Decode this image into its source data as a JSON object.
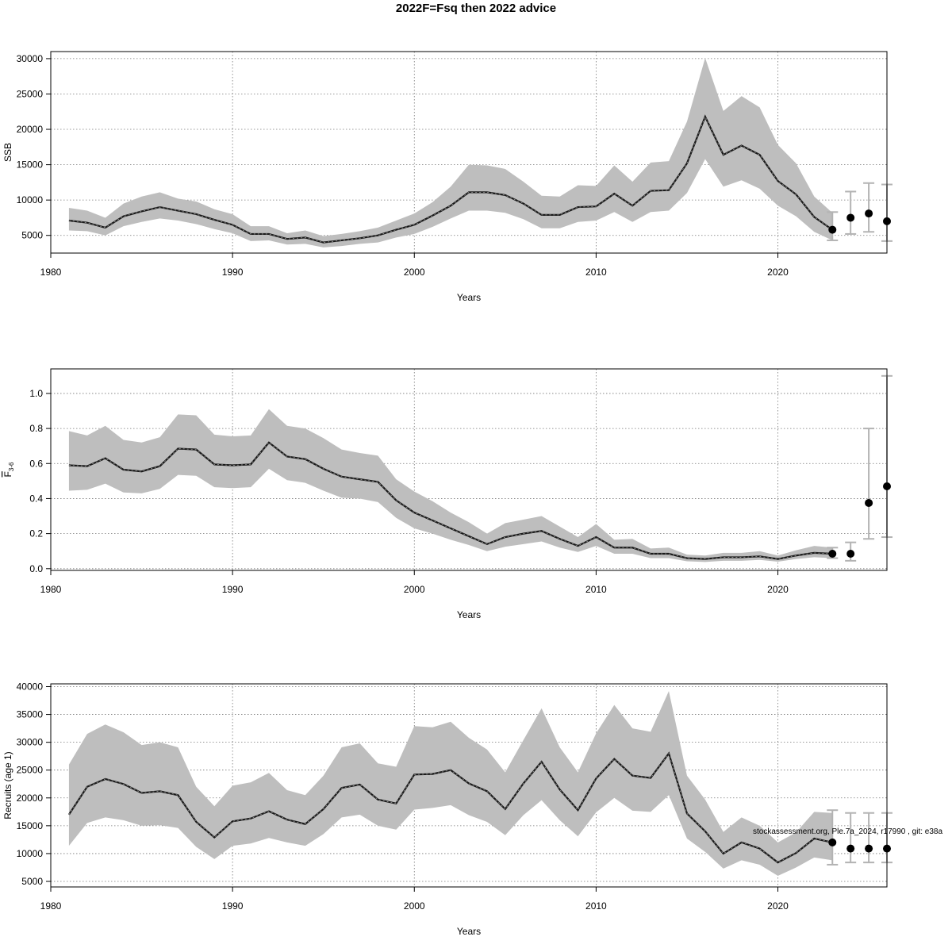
{
  "title": "2022F=Fsq then 2022 advice",
  "watermark": "stockassessment.org, Ple.7a_2024, r17990 , git: e38a",
  "colors": {
    "band": "#bebebe",
    "line": "#1a1a1a",
    "forecast_bar": "#b3b3b3",
    "point": "#000000",
    "grid": "#777777"
  },
  "chart_data": [
    {
      "type": "line",
      "ylabel": "SSB",
      "xlabel": "Years",
      "xlim": [
        1980,
        2026
      ],
      "ylim": [
        2500,
        31000
      ],
      "xticks": [
        "1980",
        "1990",
        "2000",
        "2010",
        "2020"
      ],
      "yticks": [
        "5000",
        "10000",
        "15000",
        "20000",
        "25000",
        "30000"
      ],
      "grid": true,
      "x": [
        1981,
        1982,
        1983,
        1984,
        1985,
        1986,
        1987,
        1988,
        1989,
        1990,
        1991,
        1992,
        1993,
        1994,
        1995,
        1996,
        1997,
        1998,
        1999,
        2000,
        2001,
        2002,
        2003,
        2004,
        2005,
        2006,
        2007,
        2008,
        2009,
        2010,
        2011,
        2012,
        2013,
        2014,
        2015,
        2016,
        2017,
        2018,
        2019,
        2020,
        2021,
        2022,
        2023
      ],
      "values": [
        7100,
        6800,
        6100,
        7700,
        8400,
        9000,
        8500,
        8000,
        7200,
        6500,
        5200,
        5200,
        4500,
        4700,
        4000,
        4300,
        4600,
        5000,
        5800,
        6500,
        7800,
        9200,
        11100,
        11100,
        10700,
        9500,
        7900,
        7900,
        9000,
        9100,
        10900,
        9200,
        11300,
        11400,
        15200,
        21800,
        16400,
        17700,
        16400,
        12700,
        10800,
        7600,
        5800
      ],
      "lower": [
        5700,
        5600,
        5000,
        6300,
        6900,
        7400,
        7100,
        6600,
        5900,
        5300,
        4200,
        4300,
        3700,
        3800,
        3300,
        3500,
        3800,
        4000,
        4700,
        5200,
        6200,
        7400,
        8500,
        8500,
        8200,
        7300,
        6000,
        6000,
        6900,
        7100,
        8300,
        6900,
        8300,
        8500,
        11000,
        15800,
        11900,
        12800,
        11600,
        9200,
        7700,
        5500,
        4300
      ],
      "upper": [
        8900,
        8500,
        7500,
        9500,
        10500,
        11100,
        10200,
        9800,
        8700,
        8000,
        6300,
        6300,
        5300,
        5700,
        4900,
        5200,
        5600,
        6100,
        7100,
        8100,
        9700,
        11900,
        15000,
        14900,
        14400,
        12600,
        10600,
        10500,
        12100,
        12000,
        14900,
        12600,
        15300,
        15500,
        21100,
        30100,
        22600,
        24700,
        23100,
        17800,
        15200,
        10500,
        8200
      ],
      "forecast": {
        "x": [
          2023,
          2024,
          2025,
          2026
        ],
        "values": [
          5800,
          7500,
          8100,
          7000
        ],
        "lower": [
          4300,
          5200,
          5500,
          4200
        ],
        "upper": [
          8300,
          11200,
          12400,
          12200
        ]
      }
    },
    {
      "type": "line",
      "ylabel": "F̄3-6",
      "ylabel_main": "F",
      "ylabel_sub": "3-6",
      "xlabel": "Years",
      "xlim": [
        1980,
        2026
      ],
      "ylim": [
        -0.01,
        1.14
      ],
      "xticks": [
        "1980",
        "1990",
        "2000",
        "2010",
        "2020"
      ],
      "yticks": [
        "0.0",
        "0.2",
        "0.4",
        "0.6",
        "0.8",
        "1.0"
      ],
      "grid": true,
      "x": [
        1981,
        1982,
        1983,
        1984,
        1985,
        1986,
        1987,
        1988,
        1989,
        1990,
        1991,
        1992,
        1993,
        1994,
        1995,
        1996,
        1997,
        1998,
        1999,
        2000,
        2001,
        2002,
        2003,
        2004,
        2005,
        2006,
        2007,
        2008,
        2009,
        2010,
        2011,
        2012,
        2013,
        2014,
        2015,
        2016,
        2017,
        2018,
        2019,
        2020,
        2021,
        2022,
        2023
      ],
      "values": [
        0.59,
        0.585,
        0.63,
        0.565,
        0.555,
        0.585,
        0.685,
        0.68,
        0.595,
        0.59,
        0.595,
        0.72,
        0.64,
        0.625,
        0.57,
        0.525,
        0.51,
        0.495,
        0.39,
        0.32,
        0.275,
        0.23,
        0.185,
        0.14,
        0.18,
        0.2,
        0.215,
        0.17,
        0.13,
        0.18,
        0.12,
        0.12,
        0.085,
        0.085,
        0.06,
        0.055,
        0.065,
        0.065,
        0.07,
        0.055,
        0.075,
        0.09,
        0.085
      ],
      "lower": [
        0.445,
        0.45,
        0.485,
        0.435,
        0.43,
        0.455,
        0.535,
        0.53,
        0.465,
        0.46,
        0.465,
        0.57,
        0.505,
        0.49,
        0.445,
        0.405,
        0.4,
        0.38,
        0.29,
        0.23,
        0.2,
        0.165,
        0.135,
        0.1,
        0.125,
        0.14,
        0.155,
        0.12,
        0.095,
        0.13,
        0.085,
        0.085,
        0.06,
        0.06,
        0.042,
        0.038,
        0.045,
        0.045,
        0.05,
        0.04,
        0.055,
        0.065,
        0.06
      ],
      "upper": [
        0.785,
        0.76,
        0.815,
        0.735,
        0.72,
        0.75,
        0.88,
        0.875,
        0.765,
        0.755,
        0.76,
        0.91,
        0.815,
        0.8,
        0.745,
        0.68,
        0.66,
        0.645,
        0.51,
        0.44,
        0.385,
        0.32,
        0.265,
        0.2,
        0.26,
        0.28,
        0.3,
        0.24,
        0.18,
        0.255,
        0.165,
        0.17,
        0.115,
        0.12,
        0.08,
        0.075,
        0.09,
        0.09,
        0.1,
        0.075,
        0.105,
        0.13,
        0.12
      ],
      "forecast": {
        "x": [
          2023,
          2024,
          2025,
          2026
        ],
        "values": [
          0.085,
          0.085,
          0.375,
          0.47
        ],
        "lower": [
          0.06,
          0.045,
          0.17,
          0.18
        ],
        "upper": [
          0.12,
          0.15,
          0.8,
          1.1
        ]
      }
    },
    {
      "type": "line",
      "ylabel": "Recruits (age 1)",
      "xlabel": "Years",
      "xlim": [
        1980,
        2026
      ],
      "ylim": [
        4000,
        40500
      ],
      "xticks": [
        "1980",
        "1990",
        "2000",
        "2010",
        "2020"
      ],
      "yticks": [
        "5000",
        "10000",
        "15000",
        "20000",
        "25000",
        "30000",
        "35000",
        "40000"
      ],
      "grid": true,
      "x": [
        1981,
        1982,
        1983,
        1984,
        1985,
        1986,
        1987,
        1988,
        1989,
        1990,
        1991,
        1992,
        1993,
        1994,
        1995,
        1996,
        1997,
        1998,
        1999,
        2000,
        2001,
        2002,
        2003,
        2004,
        2005,
        2006,
        2007,
        2008,
        2009,
        2010,
        2011,
        2012,
        2013,
        2014,
        2015,
        2016,
        2017,
        2018,
        2019,
        2020,
        2021,
        2022,
        2023
      ],
      "values": [
        17000,
        22000,
        23400,
        22500,
        20900,
        21200,
        20500,
        15700,
        12900,
        15800,
        16300,
        17600,
        16100,
        15300,
        18000,
        21800,
        22400,
        19700,
        19000,
        24200,
        24300,
        25000,
        22600,
        21200,
        18000,
        22600,
        26500,
        21500,
        17800,
        23500,
        27000,
        24000,
        23600,
        28000,
        17200,
        14000,
        10000,
        12000,
        10900,
        8400,
        10100,
        12700,
        12000
      ],
      "lower": [
        11400,
        15500,
        16500,
        16000,
        15000,
        15100,
        14600,
        11200,
        9000,
        11400,
        11800,
        12800,
        12000,
        11400,
        13500,
        16500,
        17000,
        15000,
        14300,
        17900,
        18200,
        18700,
        16900,
        15700,
        13300,
        16900,
        19600,
        16000,
        13100,
        17400,
        20000,
        17700,
        17500,
        20500,
        12700,
        10300,
        7300,
        8800,
        8000,
        6000,
        7500,
        9300,
        8800
      ],
      "upper": [
        26000,
        31500,
        33200,
        31800,
        29500,
        30000,
        29100,
        22000,
        18500,
        22200,
        22800,
        24500,
        21400,
        20500,
        24000,
        29100,
        29800,
        26200,
        25600,
        32900,
        32700,
        33700,
        30800,
        28700,
        24600,
        30400,
        36100,
        29100,
        24600,
        31600,
        36700,
        32500,
        31900,
        39200,
        24000,
        19700,
        13900,
        16500,
        15000,
        12000,
        13800,
        17500,
        17300
      ],
      "forecast": {
        "x": [
          2023,
          2024,
          2025,
          2026
        ],
        "values": [
          12000,
          10900,
          10900,
          10900
        ],
        "lower": [
          8000,
          8400,
          8400,
          8400
        ],
        "upper": [
          17800,
          17300,
          17300,
          17300
        ]
      }
    }
  ]
}
